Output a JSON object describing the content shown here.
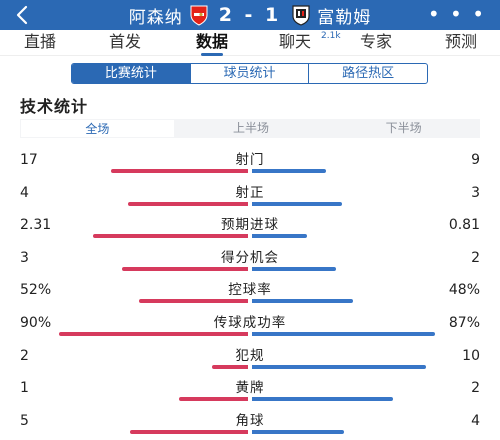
{
  "header": {
    "home_team": "阿森纳",
    "away_team": "富勒姆",
    "score": "2 - 1",
    "more_label": "• • •",
    "home_crest_icon": "arsenal-crest-icon",
    "away_crest_icon": "fulham-crest-icon",
    "back_icon": "back-arrow-icon"
  },
  "nav": {
    "items": [
      {
        "label": "直播"
      },
      {
        "label": "首发"
      },
      {
        "label": "数据"
      },
      {
        "label": "聊天"
      },
      {
        "label": "专家"
      },
      {
        "label": "预测"
      }
    ],
    "chat_badge": "2.1k",
    "active_index": 2
  },
  "segments": {
    "items": [
      {
        "label": "比赛统计"
      },
      {
        "label": "球员统计"
      },
      {
        "label": "路径热区"
      }
    ],
    "active_index": 0
  },
  "section_title": "技术统计",
  "period_tabs": {
    "items": [
      {
        "label": "全场"
      },
      {
        "label": "上半场"
      },
      {
        "label": "下半场"
      }
    ],
    "active_index": 0
  },
  "stats": [
    {
      "label": "射门",
      "home": "17",
      "away": "9",
      "home_share": 0.65,
      "away_share": 0.35
    },
    {
      "label": "射正",
      "home": "4",
      "away": "3",
      "home_share": 0.57,
      "away_share": 0.43
    },
    {
      "label": "预期进球",
      "home": "2.31",
      "away": "0.81",
      "home_share": 0.74,
      "away_share": 0.26
    },
    {
      "label": "得分机会",
      "home": "3",
      "away": "2",
      "home_share": 0.6,
      "away_share": 0.4
    },
    {
      "label": "控球率",
      "home": "52%",
      "away": "48%",
      "home_share": 0.52,
      "away_share": 0.48
    },
    {
      "label": "传球成功率",
      "home": "90%",
      "away": "87%",
      "home_share": 0.9,
      "away_share": 0.87
    },
    {
      "label": "犯规",
      "home": "2",
      "away": "10",
      "home_share": 0.17,
      "away_share": 0.83
    },
    {
      "label": "黄牌",
      "home": "1",
      "away": "2",
      "home_share": 0.33,
      "away_share": 0.67
    },
    {
      "label": "角球",
      "home": "5",
      "away": "4",
      "home_share": 0.56,
      "away_share": 0.44
    }
  ],
  "colors": {
    "brand": "#2b69b4",
    "home_bar": "#d63a5d",
    "away_bar": "#3876c7"
  }
}
